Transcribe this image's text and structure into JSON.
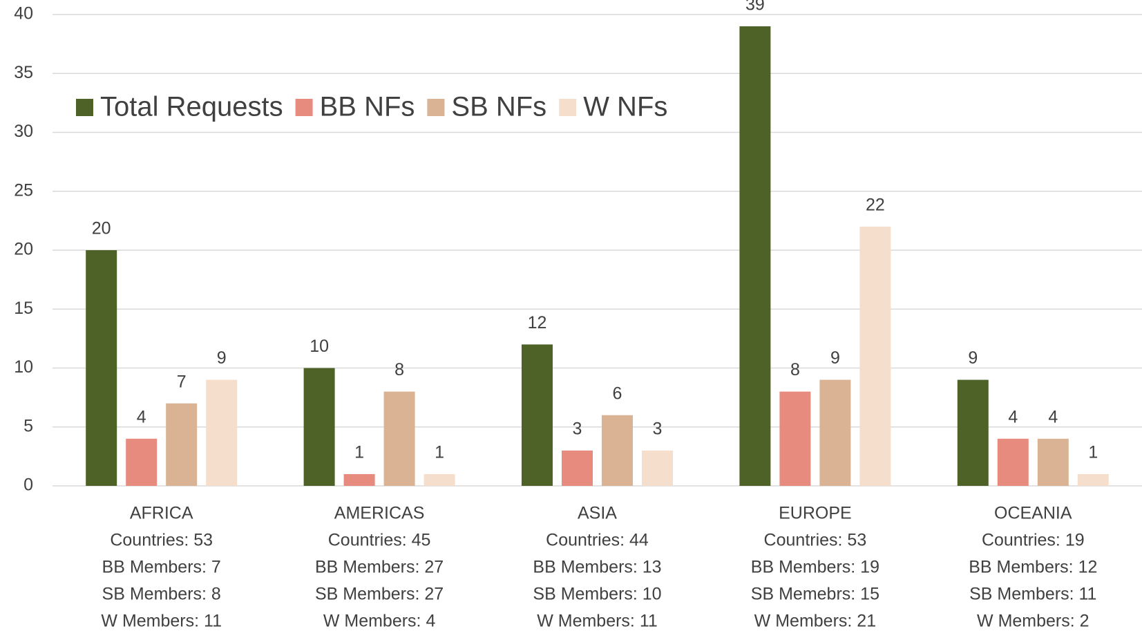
{
  "chart_data": {
    "type": "bar",
    "categories": [
      "AFRICA",
      "AMERICAS",
      "ASIA",
      "EUROPE",
      "OCEANIA"
    ],
    "category_details": [
      [
        "Countries: 53",
        "BB Members: 7",
        "SB Members: 8",
        "W Members: 11"
      ],
      [
        "Countries: 45",
        "BB Members: 27",
        "SB Members: 27",
        "W Members: 4"
      ],
      [
        "Countries: 44",
        "BB Members: 13",
        "SB Members: 10",
        "W Members: 11"
      ],
      [
        "Countries: 53",
        "BB Members: 19",
        "SB Memebrs: 15",
        "W Members: 21"
      ],
      [
        "Countries: 19",
        "BB Members: 12",
        "SB Members: 11",
        "W Members: 2"
      ]
    ],
    "series": [
      {
        "name": "Total Requests",
        "color": "#4e6228",
        "values": [
          20,
          10,
          12,
          39,
          9
        ]
      },
      {
        "name": "BB NFs",
        "color": "#e88b7f",
        "values": [
          4,
          1,
          3,
          8,
          4
        ]
      },
      {
        "name": "SB NFs",
        "color": "#d9b393",
        "values": [
          7,
          8,
          6,
          9,
          4
        ]
      },
      {
        "name": "W NFs",
        "color": "#f5dfcc",
        "values": [
          9,
          1,
          3,
          22,
          1
        ]
      }
    ],
    "ylim": [
      0,
      40
    ],
    "yticks": [
      0,
      5,
      10,
      15,
      20,
      25,
      30,
      35,
      40
    ],
    "grid": true,
    "legend": "top-left",
    "data_labels": true
  }
}
